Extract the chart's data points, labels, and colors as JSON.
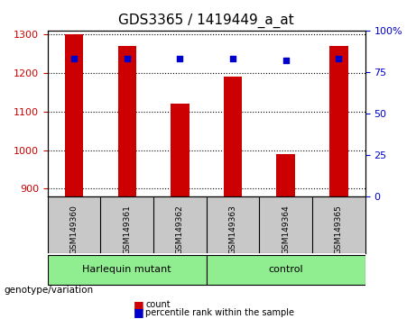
{
  "title": "GDS3365 / 1419449_a_at",
  "samples": [
    "GSM149360",
    "GSM149361",
    "GSM149362",
    "GSM149363",
    "GSM149364",
    "GSM149365"
  ],
  "counts": [
    1300,
    1270,
    1120,
    1190,
    990,
    1270
  ],
  "percentile_ranks": [
    83,
    83,
    83,
    83,
    82,
    83
  ],
  "ylim_left": [
    880,
    1310
  ],
  "ylim_right": [
    0,
    100
  ],
  "yticks_left": [
    900,
    1000,
    1100,
    1200,
    1300
  ],
  "yticks_right": [
    0,
    25,
    50,
    75,
    100
  ],
  "bar_color": "#cc0000",
  "dot_color": "#0000cc",
  "bar_width": 0.35,
  "groups": [
    {
      "label": "Harlequin mutant",
      "indices": [
        0,
        1,
        2
      ],
      "color": "#90ee90"
    },
    {
      "label": "control",
      "indices": [
        3,
        4,
        5
      ],
      "color": "#90ee90"
    }
  ],
  "group_label": "genotype/variation",
  "legend_count_label": "count",
  "legend_pct_label": "percentile rank within the sample",
  "xlabel_color": "#cc0000",
  "ylabel_right_color": "#0000cc",
  "grid_color": "black",
  "tick_area_color": "#c8c8c8",
  "group_area_color": "#90ee90"
}
